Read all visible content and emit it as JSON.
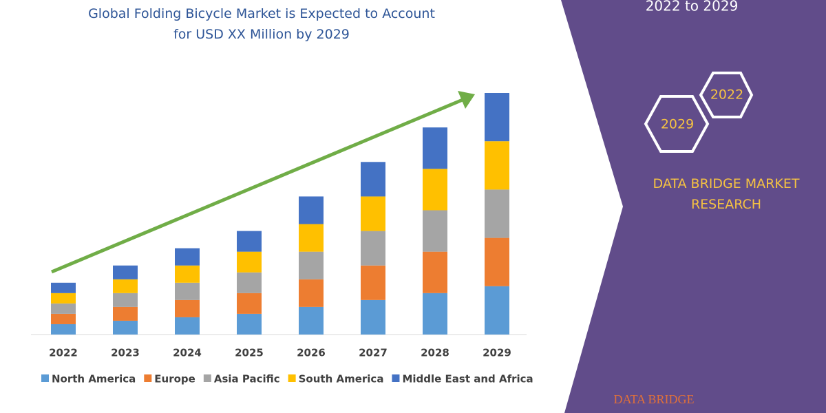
{
  "chart_data": {
    "type": "stacked-bar",
    "title": "Global Folding Bicycle Market is Expected to Account for USD XX Million by 2029",
    "categories": [
      "2022",
      "2023",
      "2024",
      "2025",
      "2026",
      "2027",
      "2028",
      "2029"
    ],
    "series": [
      {
        "name": "North America",
        "color": "#5b9bd5",
        "values": [
          15,
          20,
          25,
          30,
          40,
          50,
          60,
          70
        ]
      },
      {
        "name": "Europe",
        "color": "#ed7d31",
        "values": [
          15,
          20,
          25,
          30,
          40,
          50,
          60,
          70
        ]
      },
      {
        "name": "Asia Pacific",
        "color": "#a5a5a5",
        "values": [
          15,
          20,
          25,
          30,
          40,
          50,
          60,
          70
        ]
      },
      {
        "name": "South America",
        "color": "#ffc000",
        "values": [
          15,
          20,
          25,
          30,
          40,
          50,
          60,
          70
        ]
      },
      {
        "name": "Middle East and Africa",
        "color": "#4472c4",
        "values": [
          15,
          20,
          25,
          30,
          40,
          50,
          60,
          70
        ]
      }
    ]
  },
  "panel": {
    "period": "2022 to 2029",
    "hex_top": "2022",
    "hex_bottom": "2029",
    "brand": "DATA BRIDGE MARKET RESEARCH",
    "logo": "DATA BRIDGE"
  }
}
